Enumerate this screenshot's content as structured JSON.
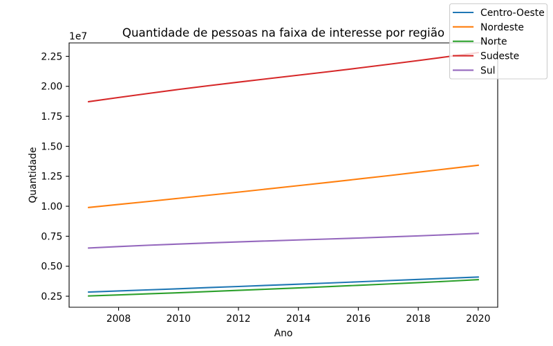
{
  "chart_data": {
    "type": "line",
    "title": "Quantidade de pessoas na faixa de interesse por região",
    "xlabel": "Ano",
    "ylabel": "Quantidade",
    "y_offset_text": "1e7",
    "x": [
      2007,
      2008,
      2009,
      2010,
      2011,
      2012,
      2013,
      2014,
      2015,
      2016,
      2017,
      2018,
      2019,
      2020
    ],
    "xlim": [
      2006.35,
      2020.65
    ],
    "ylim": [
      1580000,
      23620000
    ],
    "xticks": [
      2008,
      2010,
      2012,
      2014,
      2016,
      2018,
      2020
    ],
    "xtick_labels": [
      "2008",
      "2010",
      "2012",
      "2014",
      "2016",
      "2018",
      "2020"
    ],
    "yticks": [
      2500000,
      5000000,
      7500000,
      10000000,
      12500000,
      15000000,
      17500000,
      20000000,
      22500000
    ],
    "ytick_labels": [
      "0.25",
      "0.50",
      "0.75",
      "1.00",
      "1.25",
      "1.50",
      "1.75",
      "2.00",
      "2.25"
    ],
    "grid": false,
    "legend_position": "top-right",
    "series": [
      {
        "name": "Centro-Oeste",
        "color": "#1f77b4",
        "values": [
          2850000,
          2940000,
          3030000,
          3120000,
          3220000,
          3310000,
          3410000,
          3500000,
          3600000,
          3700000,
          3800000,
          3900000,
          4000000,
          4100000
        ]
      },
      {
        "name": "Nordeste",
        "color": "#ff7f0e",
        "values": [
          9900000,
          10150000,
          10400000,
          10660000,
          10920000,
          11180000,
          11450000,
          11720000,
          11990000,
          12270000,
          12550000,
          12840000,
          13130000,
          13420000
        ]
      },
      {
        "name": "Norte",
        "color": "#2ca02c",
        "values": [
          2520000,
          2610000,
          2700000,
          2790000,
          2890000,
          2990000,
          3090000,
          3190000,
          3300000,
          3410000,
          3520000,
          3630000,
          3750000,
          3880000
        ]
      },
      {
        "name": "Sudeste",
        "color": "#d62728",
        "values": [
          18720000,
          19070000,
          19410000,
          19740000,
          20050000,
          20350000,
          20640000,
          20930000,
          21220000,
          21520000,
          21830000,
          22150000,
          22480000,
          22810000
        ]
      },
      {
        "name": "Sul",
        "color": "#9467bd",
        "values": [
          6520000,
          6640000,
          6750000,
          6850000,
          6940000,
          7030000,
          7110000,
          7190000,
          7270000,
          7350000,
          7440000,
          7530000,
          7630000,
          7740000
        ]
      }
    ]
  }
}
